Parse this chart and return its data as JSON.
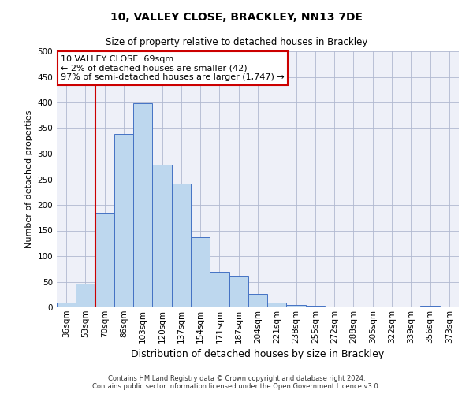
{
  "title": "10, VALLEY CLOSE, BRACKLEY, NN13 7DE",
  "subtitle": "Size of property relative to detached houses in Brackley",
  "xlabel": "Distribution of detached houses by size in Brackley",
  "ylabel": "Number of detached properties",
  "bar_labels": [
    "36sqm",
    "53sqm",
    "70sqm",
    "86sqm",
    "103sqm",
    "120sqm",
    "137sqm",
    "154sqm",
    "171sqm",
    "187sqm",
    "204sqm",
    "221sqm",
    "238sqm",
    "255sqm",
    "272sqm",
    "288sqm",
    "305sqm",
    "322sqm",
    "339sqm",
    "356sqm",
    "373sqm"
  ],
  "bar_values": [
    10,
    46,
    185,
    338,
    398,
    278,
    242,
    137,
    70,
    62,
    26,
    10,
    5,
    3,
    0,
    0,
    0,
    0,
    0,
    3,
    0
  ],
  "bar_color": "#bdd7ee",
  "bar_edge_color": "#4472c4",
  "ylim": [
    0,
    500
  ],
  "yticks": [
    0,
    50,
    100,
    150,
    200,
    250,
    300,
    350,
    400,
    450,
    500
  ],
  "vline_color": "#cc0000",
  "vline_x": 2,
  "annotation_text_line1": "10 VALLEY CLOSE: 69sqm",
  "annotation_text_line2": "← 2% of detached houses are smaller (42)",
  "annotation_text_line3": "97% of semi-detached houses are larger (1,747) →",
  "footer1": "Contains HM Land Registry data © Crown copyright and database right 2024.",
  "footer2": "Contains public sector information licensed under the Open Government Licence v3.0.",
  "bg_color": "#eef0f8",
  "grid_color": "#b0b8d0",
  "title_fontsize": 10,
  "subtitle_fontsize": 8.5,
  "ylabel_fontsize": 8,
  "xlabel_fontsize": 9,
  "tick_fontsize": 7.5
}
